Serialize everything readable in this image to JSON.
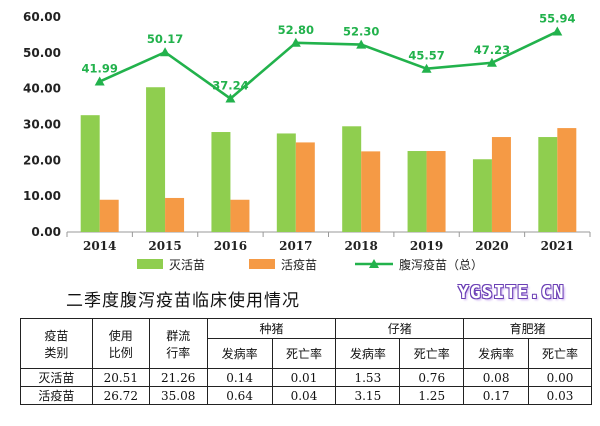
{
  "chart_data": {
    "type": "bar",
    "categories": [
      "2014",
      "2015",
      "2016",
      "2017",
      "2018",
      "2019",
      "2020",
      "2021"
    ],
    "series": [
      {
        "name": "灭活苗",
        "kind": "bar",
        "color": "#8fce4f",
        "values": [
          32.6,
          40.4,
          27.9,
          27.5,
          29.5,
          22.6,
          20.3,
          26.5
        ]
      },
      {
        "name": "活疫苗",
        "kind": "bar",
        "color": "#f59a45",
        "values": [
          9.0,
          9.5,
          9.0,
          25.0,
          22.5,
          22.6,
          26.5,
          29.0
        ]
      },
      {
        "name": "腹泻疫苗（总）",
        "kind": "line",
        "color": "#22b24c",
        "values": [
          41.99,
          50.17,
          37.24,
          52.8,
          52.3,
          45.57,
          47.23,
          55.94
        ],
        "labels": [
          "41.99",
          "50.17",
          "37.24",
          "52.80",
          "52.30",
          "45.57",
          "47.23",
          "55.94"
        ]
      }
    ],
    "ylim": [
      0,
      60
    ],
    "yticks": [
      "0.00",
      "10.00",
      "20.00",
      "30.00",
      "40.00",
      "50.00",
      "60.00"
    ],
    "grid": false,
    "legend": "bottom"
  },
  "subtitle": "二季度腹泻疫苗临床使用情况",
  "watermark": "YGSITE.CN",
  "table": {
    "h_vaccine": "疫苗\n类别",
    "h_usage": "使用\n比例",
    "h_prev": "群流\n行率",
    "groups": [
      "种猪",
      "仔猪",
      "育肥猪"
    ],
    "sub": [
      "发病率",
      "死亡率",
      "发病率",
      "死亡率",
      "发病率",
      "死亡率"
    ],
    "rows": [
      [
        "灭活苗",
        "20.51",
        "21.26",
        "0.14",
        "0.01",
        "1.53",
        "0.76",
        "0.08",
        "0.00"
      ],
      [
        "活疫苗",
        "26.72",
        "35.08",
        "0.64",
        "0.04",
        "3.15",
        "1.25",
        "0.17",
        "0.03"
      ]
    ]
  }
}
